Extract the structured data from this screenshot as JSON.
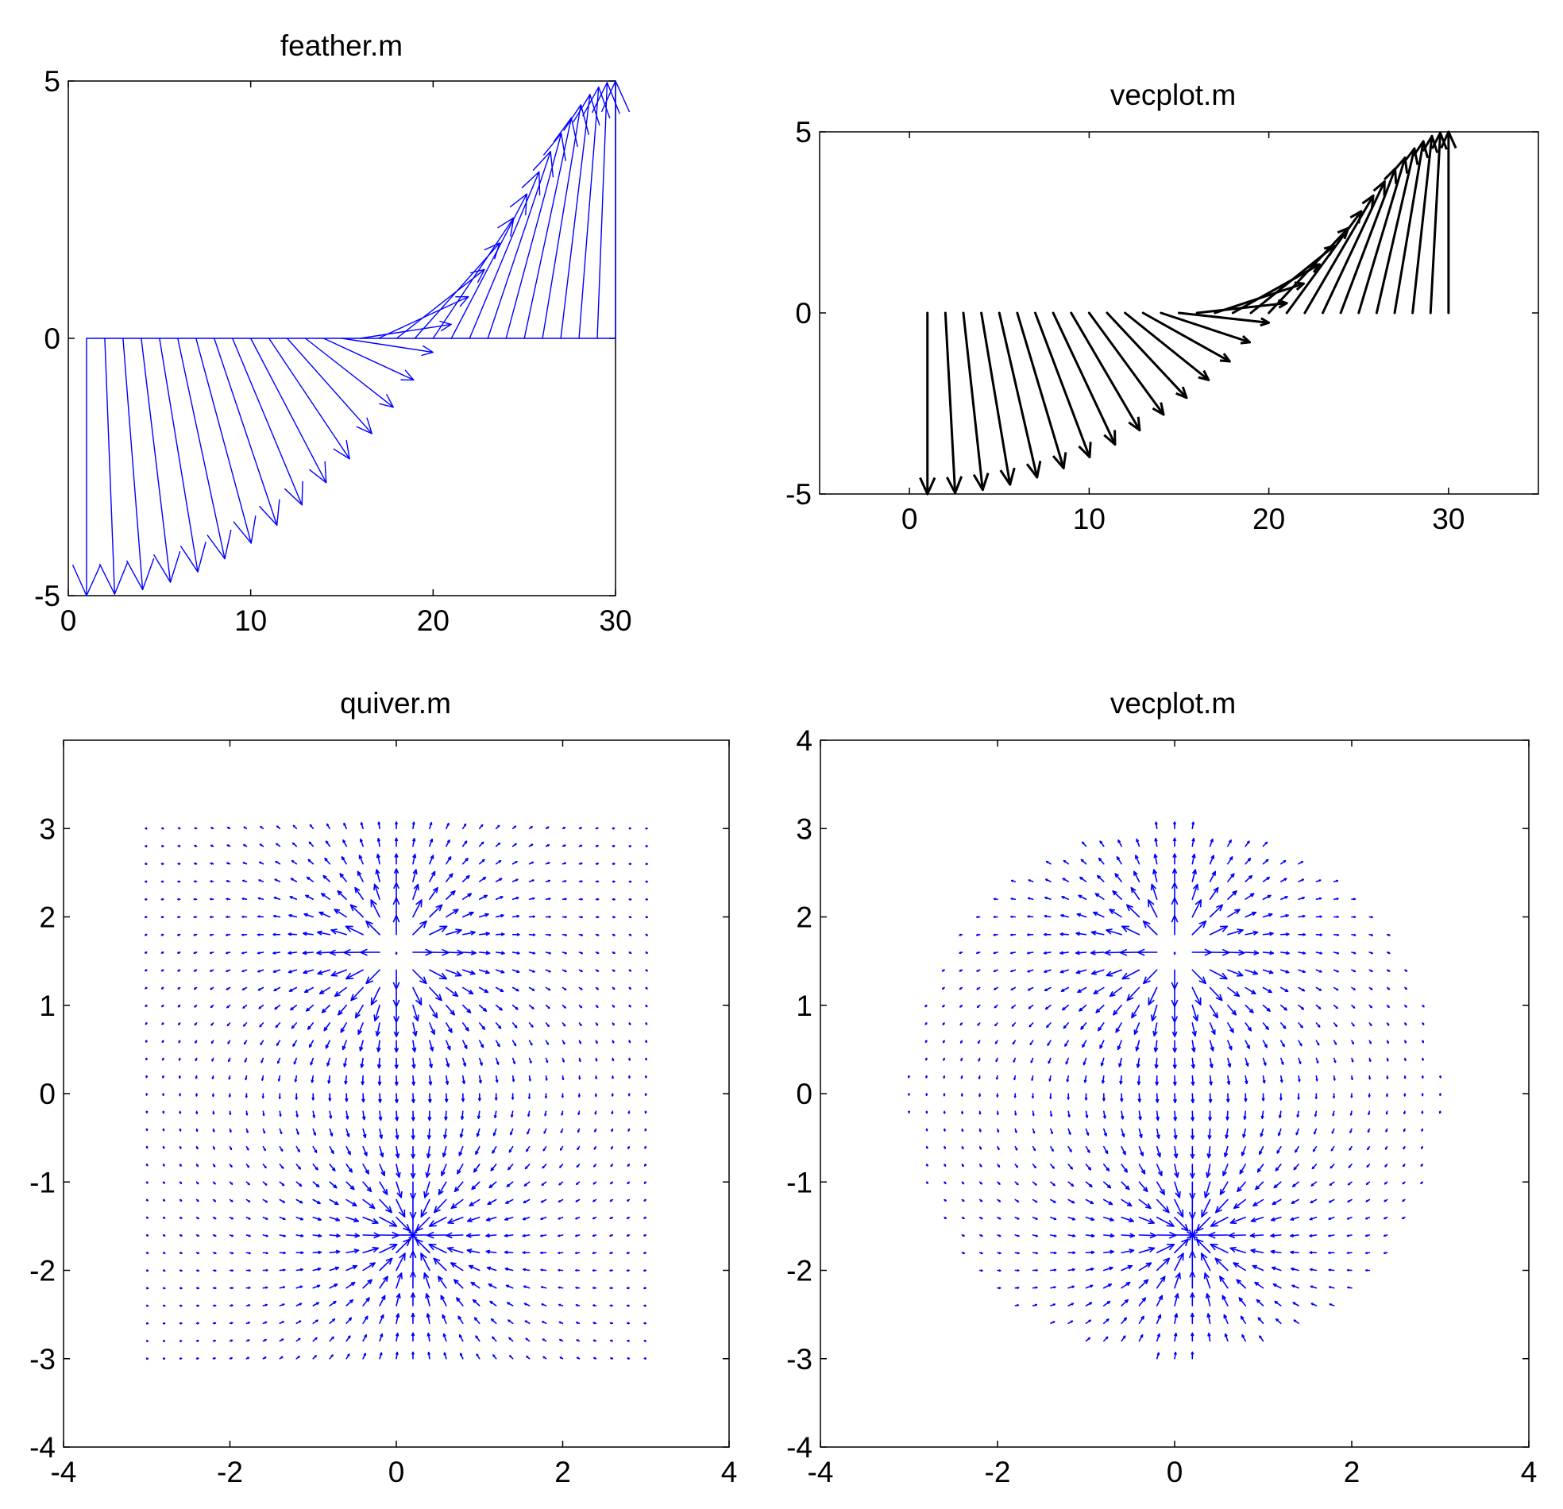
{
  "chart_data": [
    {
      "type": "feather",
      "title": "feather.m",
      "xlim": [
        0,
        30
      ],
      "ylim": [
        -5,
        5
      ],
      "xticks": [
        0,
        10,
        20,
        30
      ],
      "yticks": [
        -5,
        0,
        5
      ],
      "grid": false,
      "color": "#0000ff",
      "series": [
        {
          "note": "theta = -pi/2 .. pi/2, 30 arrows at x=1..30",
          "angle_start_deg": -90,
          "angle_end_deg": 90,
          "count": 30,
          "magnitude": 5
        }
      ]
    },
    {
      "type": "vecplot",
      "title": "vecplot.m",
      "xlim": [
        -5,
        35
      ],
      "ylim": [
        -5,
        5
      ],
      "xticks": [
        0,
        10,
        20,
        30
      ],
      "yticks": [
        -5,
        0,
        5
      ],
      "grid": false,
      "color": "#000000",
      "series": [
        {
          "angle_start_deg": -90,
          "angle_end_deg": 90,
          "count": 30,
          "magnitude": 5
        }
      ]
    },
    {
      "type": "quiver",
      "title": "quiver.m",
      "xlim": [
        -4,
        4
      ],
      "ylim": [
        -4,
        4
      ],
      "xticks": [
        -4,
        -2,
        0,
        2,
        4
      ],
      "yticks": [
        -4,
        -3,
        -2,
        -1,
        0,
        1,
        2,
        3
      ],
      "grid": false,
      "color": "#0000ff",
      "field": {
        "x_range": [
          -3,
          3
        ],
        "y_range": [
          -3,
          3
        ],
        "step": 0.2,
        "dipole_plus": [
          0,
          1.6
        ],
        "dipole_minus": [
          0.2,
          -1.6
        ],
        "region": "square"
      }
    },
    {
      "type": "vecplot",
      "title": "vecplot.m",
      "xlim": [
        -4,
        4
      ],
      "ylim": [
        -4,
        4
      ],
      "xticks": [
        -4,
        -2,
        0,
        2,
        4
      ],
      "yticks": [
        -4,
        -3,
        -2,
        -1,
        0,
        1,
        2,
        3,
        4
      ],
      "grid": false,
      "color": "#0000ff",
      "field": {
        "x_range": [
          -3,
          3
        ],
        "y_range": [
          -3,
          3
        ],
        "step": 0.2,
        "dipole_plus": [
          0,
          1.6
        ],
        "dipole_minus": [
          0.2,
          -1.6
        ],
        "region": "disk"
      }
    }
  ]
}
